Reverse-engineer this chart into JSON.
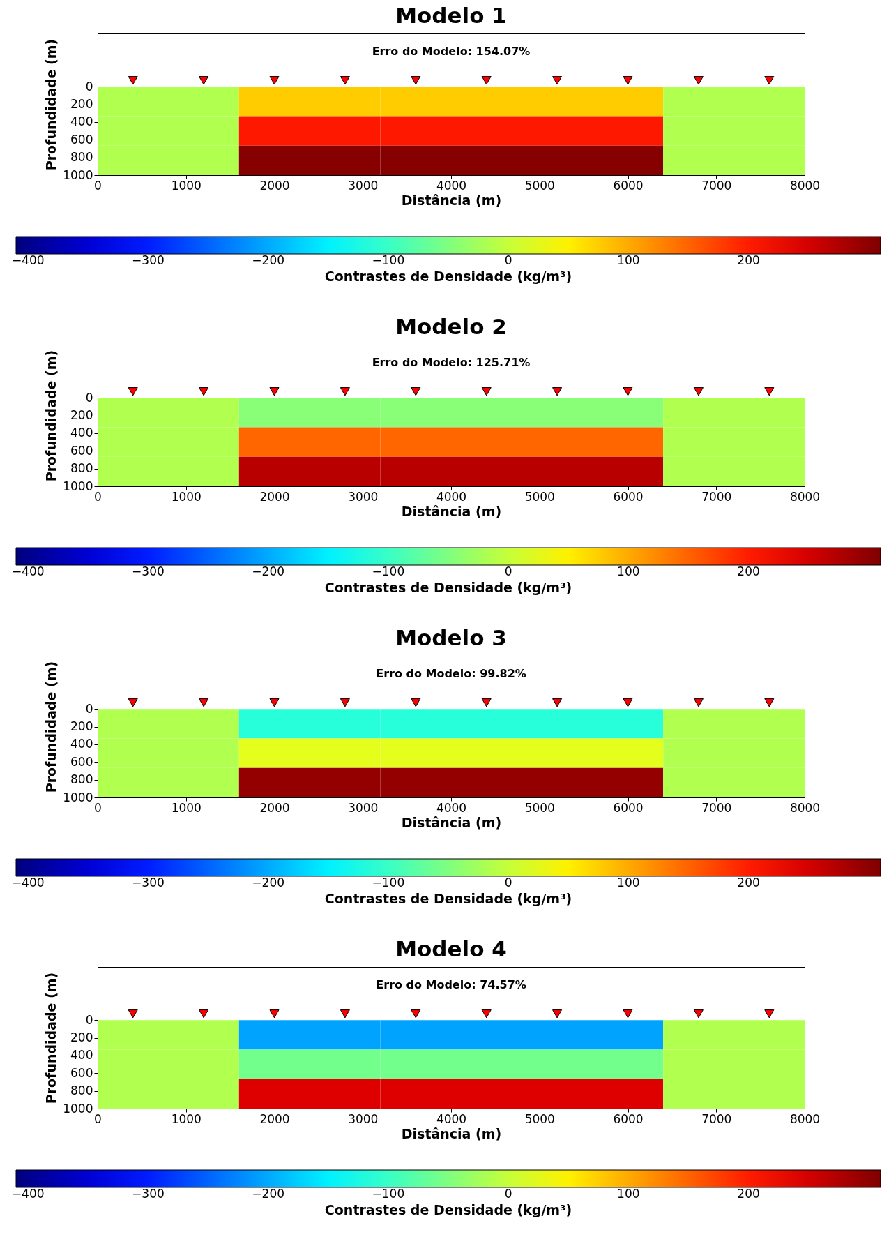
{
  "chart_data": [
    {
      "type": "heatmap",
      "title": "Modelo 1",
      "xlabel": "Distância (m)",
      "ylabel": "Profundidade (m)",
      "clabel": "Contrastes de Densidade (kg/m³)",
      "annotations": [
        "Erro do Modelo: 154.07%"
      ],
      "x": [
        800,
        2400,
        4000,
        5600,
        7200
      ],
      "y": [
        166.7,
        500,
        833.3
      ],
      "cells": [
        [
          -15,
          76,
          76,
          76,
          -15
        ],
        [
          -15,
          203,
          203,
          203,
          -15
        ],
        [
          -15,
          305,
          305,
          305,
          -15
        ]
      ],
      "xlim": [
        0,
        8000
      ],
      "xticks": [
        0,
        1000,
        2000,
        3000,
        4000,
        5000,
        6000,
        7000,
        8000
      ],
      "ylim": [
        1000,
        -600
      ],
      "yticks": [
        0,
        200,
        400,
        600,
        800,
        1000
      ],
      "clim": [
        -410,
        310
      ],
      "cticks": [
        -400,
        -300,
        -200,
        -100,
        0,
        100,
        200
      ],
      "grid": false,
      "series": [
        {
          "type": "scatter",
          "color": "#ff0000",
          "marker": "triangle",
          "x": [
            400,
            1200,
            2000,
            2800,
            3600,
            4400,
            5200,
            6000,
            6800,
            7600
          ],
          "values": [
            -70,
            -70,
            -70,
            -70,
            -70,
            -70,
            -70,
            -70,
            -70,
            -70
          ]
        }
      ]
    },
    {
      "type": "heatmap",
      "title": "Modelo 2",
      "xlabel": "Distância (m)",
      "ylabel": "Profundidade (m)",
      "clabel": "Contrastes de Densidade (kg/m³)",
      "annotations": [
        "Erro do Modelo: 125.71%"
      ],
      "x": [
        800,
        2400,
        4000,
        5600,
        7200
      ],
      "y": [
        166.7,
        500,
        833.3
      ],
      "cells": [
        [
          -15,
          -44,
          -44,
          -44,
          -15
        ],
        [
          -15,
          148,
          148,
          148,
          -15
        ],
        [
          -15,
          270,
          270,
          270,
          -15
        ]
      ],
      "xlim": [
        0,
        8000
      ],
      "xticks": [
        0,
        1000,
        2000,
        3000,
        4000,
        5000,
        6000,
        7000,
        8000
      ],
      "ylim": [
        1000,
        -600
      ],
      "yticks": [
        0,
        200,
        400,
        600,
        800,
        1000
      ],
      "clim": [
        -410,
        310
      ],
      "cticks": [
        -400,
        -300,
        -200,
        -100,
        0,
        100,
        200
      ],
      "grid": false,
      "series": [
        {
          "type": "scatter",
          "color": "#ff0000",
          "marker": "triangle",
          "x": [
            400,
            1200,
            2000,
            2800,
            3600,
            4400,
            5200,
            6000,
            6800,
            7600
          ],
          "values": [
            -70,
            -70,
            -70,
            -70,
            -70,
            -70,
            -70,
            -70,
            -70,
            -70
          ]
        }
      ]
    },
    {
      "type": "heatmap",
      "title": "Modelo 3",
      "xlabel": "Distância (m)",
      "ylabel": "Profundidade (m)",
      "clabel": "Contrastes de Densidade (kg/m³)",
      "annotations": [
        "Erro do Modelo: 99.82%"
      ],
      "x": [
        800,
        2400,
        4000,
        5600,
        7200
      ],
      "y": [
        166.7,
        500,
        833.3
      ],
      "cells": [
        [
          -15,
          -113,
          -113,
          -113,
          -15
        ],
        [
          -15,
          21,
          21,
          21,
          -15
        ],
        [
          -15,
          295,
          295,
          295,
          -15
        ]
      ],
      "xlim": [
        0,
        8000
      ],
      "xticks": [
        0,
        1000,
        2000,
        3000,
        4000,
        5000,
        6000,
        7000,
        8000
      ],
      "ylim": [
        1000,
        -600
      ],
      "yticks": [
        0,
        200,
        400,
        600,
        800,
        1000
      ],
      "clim": [
        -410,
        310
      ],
      "cticks": [
        -400,
        -300,
        -200,
        -100,
        0,
        100,
        200
      ],
      "grid": false,
      "series": [
        {
          "type": "scatter",
          "color": "#ff0000",
          "marker": "triangle",
          "x": [
            400,
            1200,
            2000,
            2800,
            3600,
            4400,
            5200,
            6000,
            6800,
            7600
          ],
          "values": [
            -70,
            -70,
            -70,
            -70,
            -70,
            -70,
            -70,
            -70,
            -70,
            -70
          ]
        }
      ]
    },
    {
      "type": "heatmap",
      "title": "Modelo 4",
      "xlabel": "Distância (m)",
      "ylabel": "Profundidade (m)",
      "clabel": "Contrastes de Densidade (kg/m³)",
      "annotations": [
        "Erro do Modelo: 74.57%"
      ],
      "x": [
        800,
        2400,
        4000,
        5600,
        7200
      ],
      "y": [
        166.7,
        500,
        833.3
      ],
      "cells": [
        [
          -15,
          -204,
          -204,
          -204,
          -15
        ],
        [
          -15,
          -59,
          -59,
          -59,
          -15
        ],
        [
          -15,
          243,
          243,
          243,
          -15
        ]
      ],
      "xlim": [
        0,
        8000
      ],
      "xticks": [
        0,
        1000,
        2000,
        3000,
        4000,
        5000,
        6000,
        7000,
        8000
      ],
      "ylim": [
        1000,
        -600
      ],
      "yticks": [
        0,
        200,
        400,
        600,
        800,
        1000
      ],
      "clim": [
        -410,
        310
      ],
      "cticks": [
        -400,
        -300,
        -200,
        -100,
        0,
        100,
        200
      ],
      "grid": false,
      "series": [
        {
          "type": "scatter",
          "color": "#ff0000",
          "marker": "triangle",
          "x": [
            400,
            1200,
            2000,
            2800,
            3600,
            4400,
            5200,
            6000,
            6800,
            7600
          ],
          "values": [
            -70,
            -70,
            -70,
            -70,
            -70,
            -70,
            -70,
            -70,
            -70,
            -70
          ]
        }
      ]
    }
  ]
}
